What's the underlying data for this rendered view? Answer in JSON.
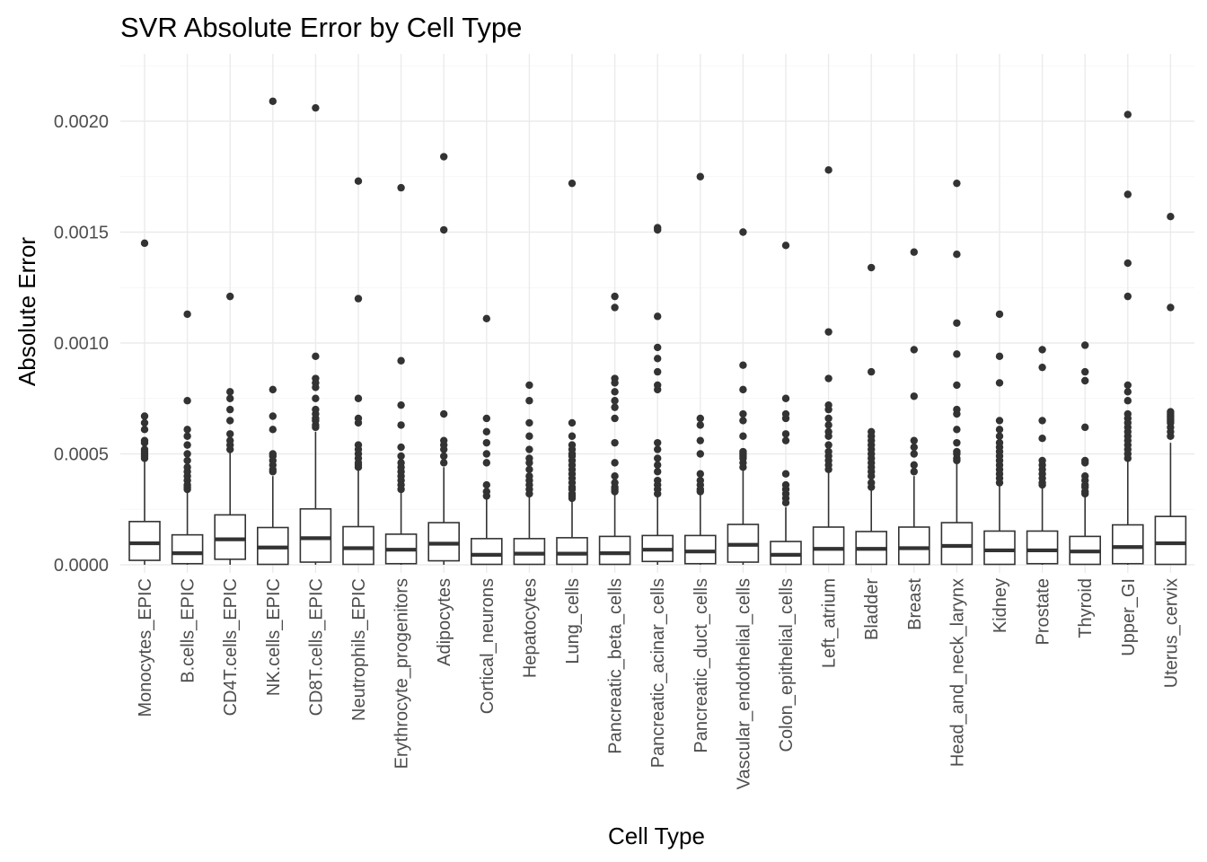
{
  "chart_data": {
    "type": "box",
    "title": "SVR Absolute Error by Cell Type",
    "xlabel": "Cell Type",
    "ylabel": "Absolute Error",
    "ylim": [
      -0.0001,
      0.00227
    ],
    "yticks": [
      0,
      0.0005,
      0.001,
      0.0015,
      0.002
    ],
    "ytick_labels": [
      "0.0000",
      "0.0005",
      "0.0010",
      "0.0015",
      "0.0020"
    ],
    "grid": true,
    "legend": "none",
    "colors": {
      "box_fill": "#ffffff",
      "box_stroke": "#333333",
      "grid": "#ebebeb",
      "tick_text": "#4d4d4d"
    },
    "categories": [
      "Monocytes_EPIC",
      "B.cells_EPIC",
      "CD4T.cells_EPIC",
      "NK.cells_EPIC",
      "CD8T.cells_EPIC",
      "Neutrophils_EPIC",
      "Erythrocyte_progenitors",
      "Adipocytes",
      "Cortical_neurons",
      "Hepatocytes",
      "Lung_cells",
      "Pancreatic_beta_cells",
      "Pancreatic_acinar_cells",
      "Pancreatic_duct_cells",
      "Vascular_endothelial_cells",
      "Colon_epithelial_cells",
      "Left_atrium",
      "Bladder",
      "Breast",
      "Head_and_neck_larynx",
      "Kidney",
      "Prostate",
      "Thyroid",
      "Upper_GI",
      "Uterus_cervix"
    ],
    "boxes": [
      {
        "q1": 2e-05,
        "median": 9.7e-05,
        "q3": 0.000195,
        "whisker_low": 0.0,
        "whisker_high": 0.00047,
        "outliers": [
          0.00048,
          0.00049,
          0.0005,
          0.00051,
          0.00052,
          0.00055,
          0.00056,
          0.00061,
          0.00064,
          0.00067,
          0.00145
        ]
      },
      {
        "q1": 5e-06,
        "median": 5.2e-05,
        "q3": 0.000135,
        "whisker_low": 0.0,
        "whisker_high": 0.00033,
        "outliers": [
          0.00034,
          0.00035,
          0.00036,
          0.00038,
          0.0004,
          0.00042,
          0.00044,
          0.00047,
          0.0005,
          0.00054,
          0.00058,
          0.00061,
          0.00074,
          0.00113
        ]
      },
      {
        "q1": 2.5e-05,
        "median": 0.000115,
        "q3": 0.000225,
        "whisker_low": 0.0,
        "whisker_high": 0.000505,
        "outliers": [
          0.00052,
          0.00054,
          0.00056,
          0.00059,
          0.00065,
          0.0007,
          0.00075,
          0.00078,
          0.00121
        ]
      },
      {
        "q1": 2e-06,
        "median": 7.8e-05,
        "q3": 0.000168,
        "whisker_low": 0.0,
        "whisker_high": 0.0004,
        "outliers": [
          0.00042,
          0.00043,
          0.00045,
          0.00047,
          0.00049,
          0.0005,
          0.00061,
          0.00067,
          0.00079,
          0.00209
        ]
      },
      {
        "q1": 1.2e-05,
        "median": 0.00012,
        "q3": 0.000252,
        "whisker_low": 0.0,
        "whisker_high": 0.0006,
        "outliers": [
          0.00062,
          0.00063,
          0.00065,
          0.00066,
          0.00068,
          0.0007,
          0.00075,
          0.0008,
          0.00082,
          0.00084,
          0.00094,
          0.00206
        ]
      },
      {
        "q1": 2e-06,
        "median": 7.5e-05,
        "q3": 0.000172,
        "whisker_low": 0.0,
        "whisker_high": 0.00043,
        "outliers": [
          0.00044,
          0.00045,
          0.00046,
          0.00048,
          0.0005,
          0.00052,
          0.00054,
          0.00064,
          0.00066,
          0.00075,
          0.0012,
          0.00173
        ]
      },
      {
        "q1": 5e-06,
        "median": 6.8e-05,
        "q3": 0.000138,
        "whisker_low": 0.0,
        "whisker_high": 0.00033,
        "outliers": [
          0.00034,
          0.00036,
          0.00038,
          0.0004,
          0.00042,
          0.00044,
          0.00046,
          0.00049,
          0.00053,
          0.00063,
          0.00072,
          0.00092,
          0.0017
        ]
      },
      {
        "q1": 1.8e-05,
        "median": 9.5e-05,
        "q3": 0.00019,
        "whisker_low": 0.0,
        "whisker_high": 0.00044,
        "outliers": [
          0.00046,
          0.00049,
          0.00052,
          0.00054,
          0.00056,
          0.00068,
          0.00151,
          0.00184
        ]
      },
      {
        "q1": 2e-06,
        "median": 4.5e-05,
        "q3": 0.000118,
        "whisker_low": 0.0,
        "whisker_high": 0.0003,
        "outliers": [
          0.00031,
          0.00033,
          0.00036,
          0.00046,
          0.0005,
          0.00055,
          0.0006,
          0.00066,
          0.00111
        ]
      },
      {
        "q1": 2e-06,
        "median": 5e-05,
        "q3": 0.000118,
        "whisker_low": 0.0,
        "whisker_high": 0.00031,
        "outliers": [
          0.00032,
          0.00034,
          0.00036,
          0.00038,
          0.0004,
          0.00043,
          0.00046,
          0.00048,
          0.00052,
          0.00058,
          0.00064,
          0.00074,
          0.00081
        ]
      },
      {
        "q1": 2e-06,
        "median": 5e-05,
        "q3": 0.000122,
        "whisker_low": 0.0,
        "whisker_high": 0.00029,
        "outliers": [
          0.0003,
          0.00031,
          0.00032,
          0.00034,
          0.00035,
          0.00037,
          0.00039,
          0.00041,
          0.00043,
          0.00045,
          0.00047,
          0.00049,
          0.0005,
          0.00052,
          0.00054,
          0.00058,
          0.00064,
          0.00172
        ]
      },
      {
        "q1": 2e-06,
        "median": 5.2e-05,
        "q3": 0.000128,
        "whisker_low": 0.0,
        "whisker_high": 0.00032,
        "outliers": [
          0.00033,
          0.00034,
          0.00035,
          0.00037,
          0.0004,
          0.00046,
          0.00055,
          0.00066,
          0.00071,
          0.00074,
          0.00078,
          0.00082,
          0.00084,
          0.00116,
          0.00121
        ]
      },
      {
        "q1": 1.5e-05,
        "median": 6.8e-05,
        "q3": 0.000132,
        "whisker_low": 0.0,
        "whisker_high": 0.00031,
        "outliers": [
          0.00032,
          0.00034,
          0.00036,
          0.00038,
          0.00042,
          0.00045,
          0.00048,
          0.00052,
          0.00055,
          0.00079,
          0.00081,
          0.00087,
          0.00093,
          0.00098,
          0.00112,
          0.00151,
          0.00152
        ]
      },
      {
        "q1": 5e-06,
        "median": 6e-05,
        "q3": 0.000132,
        "whisker_low": 0.0,
        "whisker_high": 0.00032,
        "outliers": [
          0.00033,
          0.00034,
          0.00036,
          0.00038,
          0.00041,
          0.0005,
          0.00056,
          0.00063,
          0.00066,
          0.00175
        ]
      },
      {
        "q1": 1.2e-05,
        "median": 9e-05,
        "q3": 0.000182,
        "whisker_low": 0.0,
        "whisker_high": 0.00043,
        "outliers": [
          0.00044,
          0.00046,
          0.00048,
          0.00049,
          0.0005,
          0.00051,
          0.00058,
          0.00065,
          0.00068,
          0.00079,
          0.0009,
          0.0015
        ]
      },
      {
        "q1": 2e-06,
        "median": 4.5e-05,
        "q3": 0.000105,
        "whisker_low": 0.0,
        "whisker_high": 0.00026,
        "outliers": [
          0.00028,
          0.0003,
          0.00032,
          0.00034,
          0.00036,
          0.00041,
          0.00056,
          0.00059,
          0.00066,
          0.00068,
          0.00075,
          0.00144
        ]
      },
      {
        "q1": 2e-06,
        "median": 7.2e-05,
        "q3": 0.00017,
        "whisker_low": 0.0,
        "whisker_high": 0.00042,
        "outliers": [
          0.00043,
          0.00045,
          0.00047,
          0.00049,
          0.00051,
          0.00054,
          0.00058,
          0.0006,
          0.00063,
          0.00066,
          0.0007,
          0.00072,
          0.00084,
          0.00105,
          0.00178
        ]
      },
      {
        "q1": 2e-06,
        "median": 7.2e-05,
        "q3": 0.00015,
        "whisker_low": 0.0,
        "whisker_high": 0.00034,
        "outliers": [
          0.00035,
          0.00037,
          0.0004,
          0.00042,
          0.00044,
          0.00046,
          0.00048,
          0.0005,
          0.00052,
          0.00054,
          0.00056,
          0.00058,
          0.0006,
          0.00087,
          0.00134
        ]
      },
      {
        "q1": 2e-06,
        "median": 7.5e-05,
        "q3": 0.00017,
        "whisker_low": 0.0,
        "whisker_high": 0.0004,
        "outliers": [
          0.00042,
          0.00045,
          0.0005,
          0.00053,
          0.00056,
          0.00076,
          0.00097,
          0.00141
        ]
      },
      {
        "q1": 2e-06,
        "median": 8.5e-05,
        "q3": 0.00019,
        "whisker_low": 0.0,
        "whisker_high": 0.00046,
        "outliers": [
          0.00047,
          0.00048,
          0.0005,
          0.00051,
          0.00055,
          0.00061,
          0.00068,
          0.0007,
          0.00081,
          0.00095,
          0.00109,
          0.0014,
          0.00172
        ]
      },
      {
        "q1": 2e-06,
        "median": 6.5e-05,
        "q3": 0.000152,
        "whisker_low": 0.0,
        "whisker_high": 0.00036,
        "outliers": [
          0.00037,
          0.00039,
          0.00041,
          0.00043,
          0.00045,
          0.00047,
          0.00049,
          0.00051,
          0.00053,
          0.00055,
          0.00058,
          0.00061,
          0.00065,
          0.00082,
          0.00094,
          0.00113
        ]
      },
      {
        "q1": 5e-06,
        "median": 6.5e-05,
        "q3": 0.000152,
        "whisker_low": 0.0,
        "whisker_high": 0.00035,
        "outliers": [
          0.00036,
          0.00037,
          0.00039,
          0.00041,
          0.00043,
          0.00045,
          0.00047,
          0.00057,
          0.00065,
          0.00089,
          0.00097
        ]
      },
      {
        "q1": 2e-06,
        "median": 6e-05,
        "q3": 0.000128,
        "whisker_low": 0.0,
        "whisker_high": 0.00031,
        "outliers": [
          0.00032,
          0.00033,
          0.00035,
          0.00036,
          0.00038,
          0.0004,
          0.00046,
          0.00047,
          0.00062,
          0.00083,
          0.00087,
          0.00099
        ]
      },
      {
        "q1": 5e-06,
        "median": 8e-05,
        "q3": 0.00018,
        "whisker_low": 0.0,
        "whisker_high": 0.00047,
        "outliers": [
          0.00048,
          0.0005,
          0.00052,
          0.00054,
          0.00056,
          0.00058,
          0.0006,
          0.00062,
          0.00064,
          0.00066,
          0.00068,
          0.00074,
          0.00078,
          0.00081,
          0.00121,
          0.00136,
          0.00167,
          0.00203
        ]
      },
      {
        "q1": 2e-06,
        "median": 9.7e-05,
        "q3": 0.000218,
        "whisker_low": 0.0,
        "whisker_high": 0.00055,
        "outliers": [
          0.00058,
          0.0006,
          0.00062,
          0.00064,
          0.00065,
          0.00066,
          0.00067,
          0.00068,
          0.00069,
          0.00116,
          0.00157
        ]
      }
    ]
  }
}
